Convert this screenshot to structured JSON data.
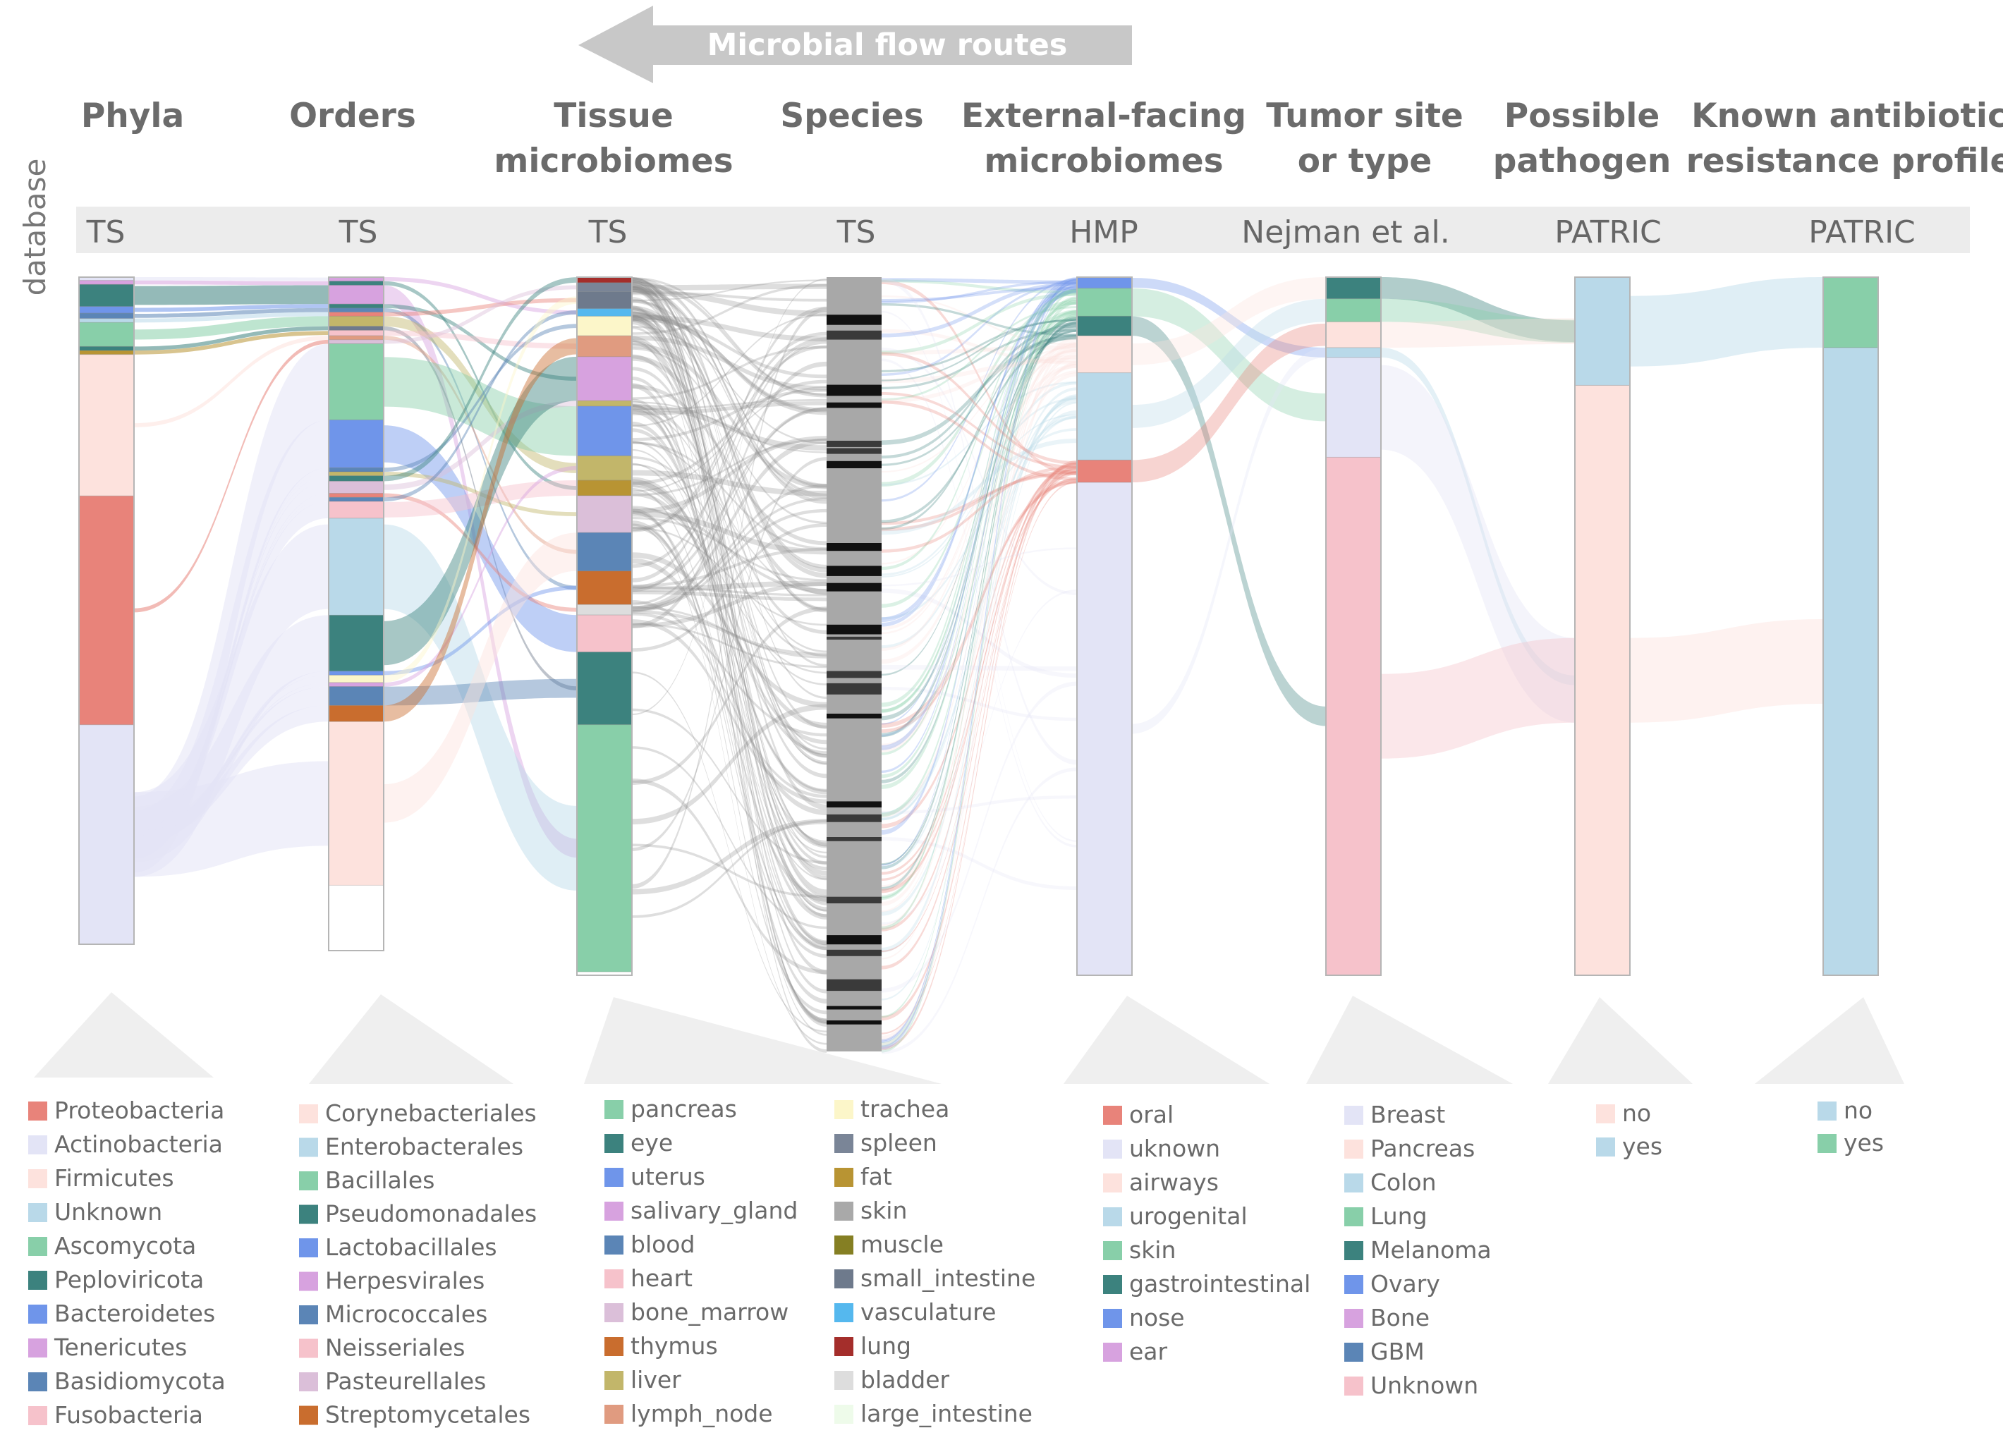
{
  "arrow": {
    "label": "Microbial flow routes"
  },
  "side_label": "database",
  "columns": [
    {
      "title": [
        "Phyla"
      ],
      "database": "TS"
    },
    {
      "title": [
        "Orders"
      ],
      "database": "TS"
    },
    {
      "title": [
        "Tissue",
        "microbiomes"
      ],
      "database": "TS"
    },
    {
      "title": [
        "Species"
      ],
      "database": "TS"
    },
    {
      "title": [
        "External-facing",
        "microbiomes"
      ],
      "database": "HMP"
    },
    {
      "title": [
        "Tumor site",
        "or type"
      ],
      "database": "Nejman et al."
    },
    {
      "title": [
        "Possible",
        "pathogen"
      ],
      "database": "PATRIC"
    },
    {
      "title": [
        "Known antibiotic",
        "resistance profile"
      ],
      "database": "PATRIC"
    }
  ],
  "legends": [
    {
      "name": "Phyla",
      "items": [
        {
          "label": "Proteobacteria",
          "color": "#e8837a"
        },
        {
          "label": "Actinobacteria",
          "color": "#e3e4f6"
        },
        {
          "label": "Firmicutes",
          "color": "#fde2dd"
        },
        {
          "label": "Unknown",
          "color": "#b9d9e9"
        },
        {
          "label": "Ascomycota",
          "color": "#88cfa9"
        },
        {
          "label": "Peploviricota",
          "color": "#3c827e"
        },
        {
          "label": "Bacteroidetes",
          "color": "#6f95ea"
        },
        {
          "label": "Tenericutes",
          "color": "#d7a2df"
        },
        {
          "label": "Basidiomycota",
          "color": "#5b85b6"
        },
        {
          "label": "Fusobacteria",
          "color": "#f6c2cb"
        }
      ]
    },
    {
      "name": "Orders",
      "items": [
        {
          "label": "Corynebacteriales",
          "color": "#fde2dd"
        },
        {
          "label": "Enterobacterales",
          "color": "#b9d9e9"
        },
        {
          "label": "Bacillales",
          "color": "#88cfa9"
        },
        {
          "label": "Pseudomonadales",
          "color": "#3c827e"
        },
        {
          "label": "Lactobacillales",
          "color": "#6f95ea"
        },
        {
          "label": "Herpesvirales",
          "color": "#d7a2df"
        },
        {
          "label": "Micrococcales",
          "color": "#5b85b6"
        },
        {
          "label": "Neisseriales",
          "color": "#f6c2cb"
        },
        {
          "label": "Pasteurellales",
          "color": "#dbbfd9"
        },
        {
          "label": "Streptomycetales",
          "color": "#c96d2e"
        }
      ]
    },
    {
      "name": "Tissue microbiomes A",
      "items": [
        {
          "label": "pancreas",
          "color": "#88cfa9"
        },
        {
          "label": "eye",
          "color": "#3c827e"
        },
        {
          "label": "uterus",
          "color": "#6f95ea"
        },
        {
          "label": "salivary_gland",
          "color": "#d7a2df"
        },
        {
          "label": "blood",
          "color": "#5b85b6"
        },
        {
          "label": "heart",
          "color": "#f6c2cb"
        },
        {
          "label": "bone_marrow",
          "color": "#dbbfd9"
        },
        {
          "label": "thymus",
          "color": "#c96d2e"
        },
        {
          "label": "liver",
          "color": "#c2b66a"
        },
        {
          "label": "lymph_node",
          "color": "#e09b80"
        }
      ]
    },
    {
      "name": "Tissue microbiomes B",
      "items": [
        {
          "label": "trachea",
          "color": "#fcf6c9"
        },
        {
          "label": "spleen",
          "color": "#7a8597"
        },
        {
          "label": "fat",
          "color": "#b89433"
        },
        {
          "label": "skin",
          "color": "#a9a9a9"
        },
        {
          "label": "muscle",
          "color": "#857f23"
        },
        {
          "label": "small_intestine",
          "color": "#6e7a8c"
        },
        {
          "label": "vasculature",
          "color": "#55b8ee"
        },
        {
          "label": "lung",
          "color": "#a42e2b"
        },
        {
          "label": "bladder",
          "color": "#dddddd"
        },
        {
          "label": "large_intestine",
          "color": "#eefbea"
        }
      ]
    },
    {
      "name": "External-facing microbiomes",
      "items": [
        {
          "label": "oral",
          "color": "#e8837a"
        },
        {
          "label": "uknown",
          "color": "#e3e4f6"
        },
        {
          "label": "airways",
          "color": "#fde2dd"
        },
        {
          "label": "urogenital",
          "color": "#b9d9e9"
        },
        {
          "label": "skin",
          "color": "#88cfa9"
        },
        {
          "label": "gastrointestinal",
          "color": "#3c827e"
        },
        {
          "label": "nose",
          "color": "#6f95ea"
        },
        {
          "label": "ear",
          "color": "#d7a2df"
        }
      ]
    },
    {
      "name": "Tumor site or type",
      "items": [
        {
          "label": "Breast",
          "color": "#e3e4f6"
        },
        {
          "label": "Pancreas",
          "color": "#fde2dd"
        },
        {
          "label": "Colon",
          "color": "#b9d9e9"
        },
        {
          "label": "Lung",
          "color": "#88cfa9"
        },
        {
          "label": "Melanoma",
          "color": "#3c827e"
        },
        {
          "label": "Ovary",
          "color": "#6f95ea"
        },
        {
          "label": "Bone",
          "color": "#d7a2df"
        },
        {
          "label": "GBM",
          "color": "#5b85b6"
        },
        {
          "label": "Unknown",
          "color": "#f6c2cb"
        }
      ]
    },
    {
      "name": "Possible pathogen",
      "items": [
        {
          "label": "no",
          "color": "#fde2dd"
        },
        {
          "label": "yes",
          "color": "#b9d9e9"
        }
      ]
    },
    {
      "name": "Known antibiotic resistance profile",
      "items": [
        {
          "label": "no",
          "color": "#b9d9e9"
        },
        {
          "label": "yes",
          "color": "#88cfa9"
        }
      ]
    }
  ],
  "nodes": [
    {
      "column": 0,
      "segments": [
        {
          "color": "#e3e4f6",
          "fraction": 0.005
        },
        {
          "color": "#d7a2df",
          "fraction": 0.006
        },
        {
          "color": "#3c827e",
          "fraction": 0.033
        },
        {
          "color": "#6f95ea",
          "fraction": 0.01
        },
        {
          "color": "#5b85b6",
          "fraction": 0.008
        },
        {
          "color": "#b9d9e9",
          "fraction": 0.006
        },
        {
          "color": "#88cfa9",
          "fraction": 0.036
        },
        {
          "color": "#3c827e",
          "fraction": 0.006
        },
        {
          "color": "#b89433",
          "fraction": 0.006
        },
        {
          "color": "#fde2dd",
          "fraction": 0.212
        },
        {
          "color": "#e8837a",
          "fraction": 0.343
        },
        {
          "color": "#e3e4f6",
          "fraction": 0.329
        }
      ]
    },
    {
      "column": 1,
      "segments": [
        {
          "color": "#d7a2df",
          "fraction": 0.006
        },
        {
          "color": "#3c827e",
          "fraction": 0.006
        },
        {
          "color": "#d7a2df",
          "fraction": 0.028
        },
        {
          "color": "#3c827e",
          "fraction": 0.006
        },
        {
          "color": "#5b85b6",
          "fraction": 0.006
        },
        {
          "color": "#e8837a",
          "fraction": 0.006
        },
        {
          "color": "#c2b66a",
          "fraction": 0.015
        },
        {
          "color": "#6e7a8c",
          "fraction": 0.006
        },
        {
          "color": "#f6c2cb",
          "fraction": 0.008
        },
        {
          "color": "#e09b80",
          "fraction": 0.006
        },
        {
          "color": "#dbbfd9",
          "fraction": 0.006
        },
        {
          "color": "#88cfa9",
          "fraction": 0.113
        },
        {
          "color": "#6f95ea",
          "fraction": 0.071
        },
        {
          "color": "#5b85b6",
          "fraction": 0.006
        },
        {
          "color": "#c2b66a",
          "fraction": 0.006
        },
        {
          "color": "#3c827e",
          "fraction": 0.008
        },
        {
          "color": "#dbbfd9",
          "fraction": 0.018
        },
        {
          "color": "#e8837a",
          "fraction": 0.006
        },
        {
          "color": "#5b85b6",
          "fraction": 0.006
        },
        {
          "color": "#f6c2cb",
          "fraction": 0.025
        },
        {
          "color": "#b9d9e9",
          "fraction": 0.144
        },
        {
          "color": "#3c827e",
          "fraction": 0.083
        },
        {
          "color": "#6f95ea",
          "fraction": 0.006
        },
        {
          "color": "#fcf6c9",
          "fraction": 0.011
        },
        {
          "color": "#d7a2df",
          "fraction": 0.006
        },
        {
          "color": "#5b85b6",
          "fraction": 0.028
        },
        {
          "color": "#c96d2e",
          "fraction": 0.024
        },
        {
          "color": "#fde2dd",
          "fraction": 0.243
        }
      ]
    },
    {
      "column": 2,
      "segments": [
        {
          "color": "#a42e2b",
          "fraction": 0.008
        },
        {
          "color": "#7a8597",
          "fraction": 0.013
        },
        {
          "color": "#6e7a8c",
          "fraction": 0.024
        },
        {
          "color": "#55b8ee",
          "fraction": 0.011
        },
        {
          "color": "#fcf6c9",
          "fraction": 0.028
        },
        {
          "color": "#e09b80",
          "fraction": 0.03
        },
        {
          "color": "#d7a2df",
          "fraction": 0.063
        },
        {
          "color": "#c2b66a",
          "fraction": 0.008
        },
        {
          "color": "#6f95ea",
          "fraction": 0.071
        },
        {
          "color": "#c2b66a",
          "fraction": 0.035
        },
        {
          "color": "#b89433",
          "fraction": 0.022
        },
        {
          "color": "#dbbfd9",
          "fraction": 0.053
        },
        {
          "color": "#5b85b6",
          "fraction": 0.055
        },
        {
          "color": "#c96d2e",
          "fraction": 0.048
        },
        {
          "color": "#dddddd",
          "fraction": 0.015
        },
        {
          "color": "#f6c2cb",
          "fraction": 0.053
        },
        {
          "color": "#3c827e",
          "fraction": 0.104
        },
        {
          "color": "#88cfa9",
          "fraction": 0.354
        }
      ]
    },
    {
      "column": 4,
      "segments": [
        {
          "color": "#6f95ea",
          "fraction": 0.016
        },
        {
          "color": "#88cfa9",
          "fraction": 0.04
        },
        {
          "color": "#3c827e",
          "fraction": 0.028
        },
        {
          "color": "#fde2dd",
          "fraction": 0.053
        },
        {
          "color": "#b9d9e9",
          "fraction": 0.125
        },
        {
          "color": "#e8837a",
          "fraction": 0.032
        },
        {
          "color": "#e3e4f6",
          "fraction": 0.706
        }
      ]
    },
    {
      "column": 5,
      "segments": [
        {
          "color": "#3c827e",
          "fraction": 0.031
        },
        {
          "color": "#88cfa9",
          "fraction": 0.033
        },
        {
          "color": "#fde2dd",
          "fraction": 0.037
        },
        {
          "color": "#b9d9e9",
          "fraction": 0.014
        },
        {
          "color": "#e3e4f6",
          "fraction": 0.143
        },
        {
          "color": "#f6c2cb",
          "fraction": 0.742
        }
      ]
    },
    {
      "column": 6,
      "segments": [
        {
          "color": "#b9d9e9",
          "fraction": 0.155
        },
        {
          "color": "#fde2dd",
          "fraction": 0.845
        }
      ]
    },
    {
      "column": 7,
      "segments": [
        {
          "color": "#88cfa9",
          "fraction": 0.101
        },
        {
          "color": "#b9d9e9",
          "fraction": 0.899
        }
      ]
    }
  ]
}
